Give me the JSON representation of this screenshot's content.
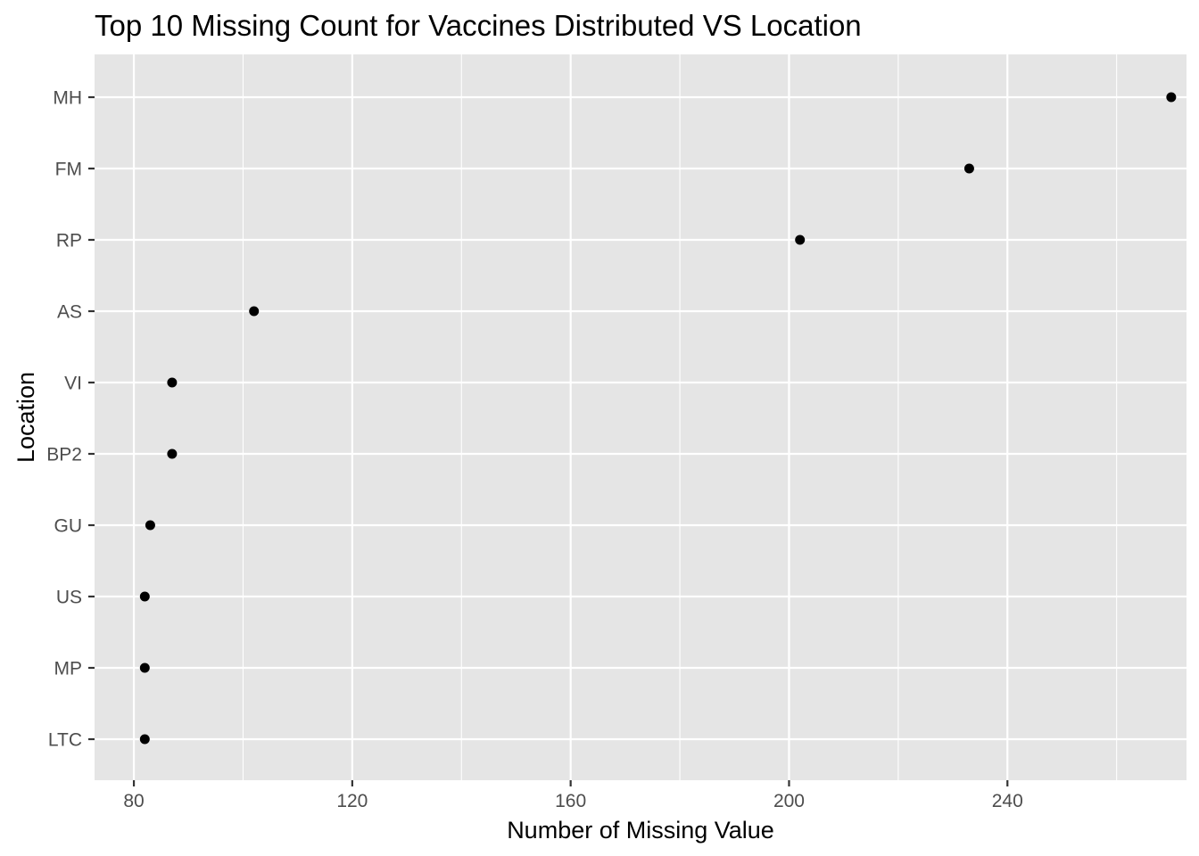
{
  "chart_data": {
    "type": "scatter",
    "title": "Top 10 Missing Count for Vaccines Distributed VS Location",
    "xlabel": "Number of Missing Value",
    "ylabel": "Location",
    "xlim": [
      72.8,
      272.8
    ],
    "x_ticks": [
      80,
      120,
      160,
      200,
      240
    ],
    "x_tick_labels": [
      "80",
      "120",
      "160",
      "200",
      "240"
    ],
    "x_minor_breaks": [
      100,
      140,
      180,
      220,
      260
    ],
    "categories": [
      "MH",
      "FM",
      "RP",
      "AS",
      "VI",
      "BP2",
      "GU",
      "US",
      "MP",
      "LTC"
    ],
    "values": [
      270,
      233,
      202,
      102,
      87,
      87,
      83,
      82,
      82,
      82
    ],
    "grid": true,
    "legend": "none",
    "colors": {
      "panel_background": "#e5e5e5",
      "grid_line": "#ffffff",
      "point": "#000000",
      "tick_label": "#4d4d4d",
      "tick_mark": "#333333",
      "text": "#000000"
    }
  }
}
